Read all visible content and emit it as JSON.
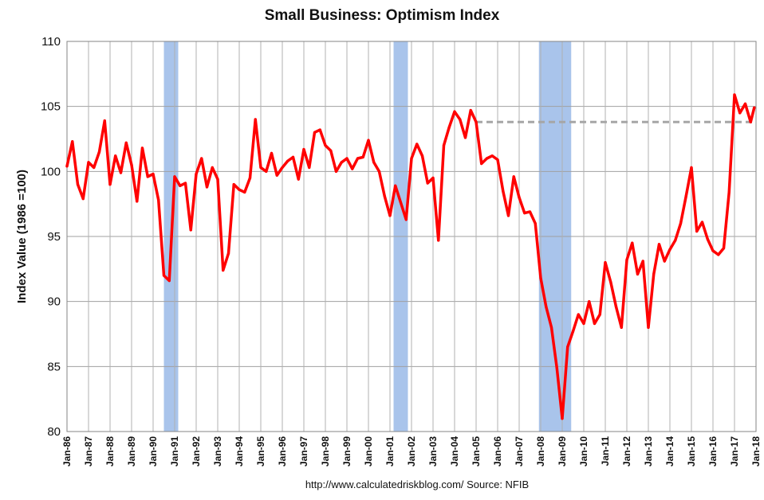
{
  "chart_data": {
    "type": "line",
    "title": "Small Business: Optimism Index",
    "ylabel": "Index Value (1986 =100)",
    "xlabel": "",
    "source": "http://www.calculatedriskblog.com/  Source: NFIB",
    "ylim": [
      80,
      110
    ],
    "yticks": [
      "80",
      "85",
      "90",
      "95",
      "100",
      "105",
      "110"
    ],
    "xlim": [
      "1986-01",
      "2018-01"
    ],
    "xticks": [
      "Jan-86",
      "Jan-87",
      "Jan-88",
      "Jan-89",
      "Jan-90",
      "Jan-91",
      "Jan-92",
      "Jan-93",
      "Jan-94",
      "Jan-95",
      "Jan-96",
      "Jan-97",
      "Jan-98",
      "Jan-99",
      "Jan-00",
      "Jan-01",
      "Jan-02",
      "Jan-03",
      "Jan-04",
      "Jan-05",
      "Jan-06",
      "Jan-07",
      "Jan-08",
      "Jan-09",
      "Jan-10",
      "Jan-11",
      "Jan-12",
      "Jan-13",
      "Jan-14",
      "Jan-15",
      "Jan-16",
      "Jan-17",
      "Jan-18"
    ],
    "grid": true,
    "recessions": [
      {
        "start": "1990-07",
        "end": "1991-03"
      },
      {
        "start": "2001-03",
        "end": "2001-11"
      },
      {
        "start": "2007-12",
        "end": "2009-06"
      }
    ],
    "reference_line": {
      "y": 103.8,
      "x_start": "2005-01",
      "x_end": "2018-01",
      "color": "#a6a6a6",
      "style": "dashed"
    },
    "series": [
      {
        "color": "#ff0000",
        "x": [
          "1986-01",
          "1986-04",
          "1986-07",
          "1986-10",
          "1987-01",
          "1987-04",
          "1987-07",
          "1987-10",
          "1988-01",
          "1988-04",
          "1988-07",
          "1988-10",
          "1989-01",
          "1989-04",
          "1989-07",
          "1989-10",
          "1990-01",
          "1990-04",
          "1990-07",
          "1990-10",
          "1991-01",
          "1991-04",
          "1991-07",
          "1991-10",
          "1992-01",
          "1992-04",
          "1992-07",
          "1992-10",
          "1993-01",
          "1993-04",
          "1993-07",
          "1993-10",
          "1994-01",
          "1994-04",
          "1994-07",
          "1994-10",
          "1995-01",
          "1995-04",
          "1995-07",
          "1995-10",
          "1996-01",
          "1996-04",
          "1996-07",
          "1996-10",
          "1997-01",
          "1997-04",
          "1997-07",
          "1997-10",
          "1998-01",
          "1998-04",
          "1998-07",
          "1998-10",
          "1999-01",
          "1999-04",
          "1999-07",
          "1999-10",
          "2000-01",
          "2000-04",
          "2000-07",
          "2000-10",
          "2001-01",
          "2001-04",
          "2001-07",
          "2001-10",
          "2002-01",
          "2002-04",
          "2002-07",
          "2002-10",
          "2003-01",
          "2003-04",
          "2003-07",
          "2003-10",
          "2004-01",
          "2004-04",
          "2004-07",
          "2004-10",
          "2005-01",
          "2005-04",
          "2005-07",
          "2005-10",
          "2006-01",
          "2006-04",
          "2006-07",
          "2006-10",
          "2007-01",
          "2007-04",
          "2007-07",
          "2007-10",
          "2008-01",
          "2008-04",
          "2008-07",
          "2008-10",
          "2009-01",
          "2009-04",
          "2009-07",
          "2009-10",
          "2010-01",
          "2010-04",
          "2010-07",
          "2010-10",
          "2011-01",
          "2011-04",
          "2011-07",
          "2011-10",
          "2012-01",
          "2012-04",
          "2012-07",
          "2012-10",
          "2013-01",
          "2013-04",
          "2013-07",
          "2013-10",
          "2014-01",
          "2014-04",
          "2014-07",
          "2014-10",
          "2015-01",
          "2015-04",
          "2015-07",
          "2015-10",
          "2016-01",
          "2016-04",
          "2016-07",
          "2016-10",
          "2017-01",
          "2017-04",
          "2017-07",
          "2017-10",
          "2017-12"
        ],
        "y": [
          100.4,
          102.3,
          99.0,
          97.9,
          100.7,
          100.3,
          101.5,
          103.9,
          99.0,
          101.2,
          99.9,
          102.2,
          100.5,
          97.7,
          101.8,
          99.6,
          99.8,
          97.8,
          92.0,
          91.6,
          99.6,
          98.9,
          99.1,
          95.5,
          99.8,
          101.0,
          98.8,
          100.3,
          99.4,
          92.4,
          93.7,
          99.0,
          98.6,
          98.4,
          99.5,
          104.0,
          100.3,
          100.0,
          101.4,
          99.7,
          100.3,
          100.8,
          101.1,
          99.4,
          101.7,
          100.3,
          103.0,
          103.2,
          102.0,
          101.6,
          100.0,
          100.7,
          101.0,
          100.2,
          101.0,
          101.1,
          102.4,
          100.7,
          100.0,
          98.1,
          96.6,
          98.9,
          97.6,
          96.3,
          101.0,
          102.1,
          101.2,
          99.1,
          99.5,
          94.7,
          102.0,
          103.4,
          104.6,
          104.0,
          102.6,
          104.7,
          103.8,
          100.6,
          101.0,
          101.2,
          100.9,
          98.5,
          96.6,
          99.6,
          98.0,
          96.8,
          96.9,
          96.0,
          91.8,
          89.6,
          88.0,
          84.9,
          81.0,
          86.5,
          87.7,
          89.0,
          88.3,
          90.0,
          88.3,
          89.0,
          93.0,
          91.5,
          89.6,
          88.0,
          93.2,
          94.5,
          92.1,
          93.1,
          88.0,
          92.1,
          94.4,
          93.1,
          94.0,
          94.7,
          96.0,
          98.1,
          100.3,
          95.4,
          96.1,
          94.8,
          93.9,
          93.6,
          94.1,
          98.4,
          105.9,
          104.5,
          105.2,
          103.8,
          104.9
        ]
      }
    ]
  }
}
